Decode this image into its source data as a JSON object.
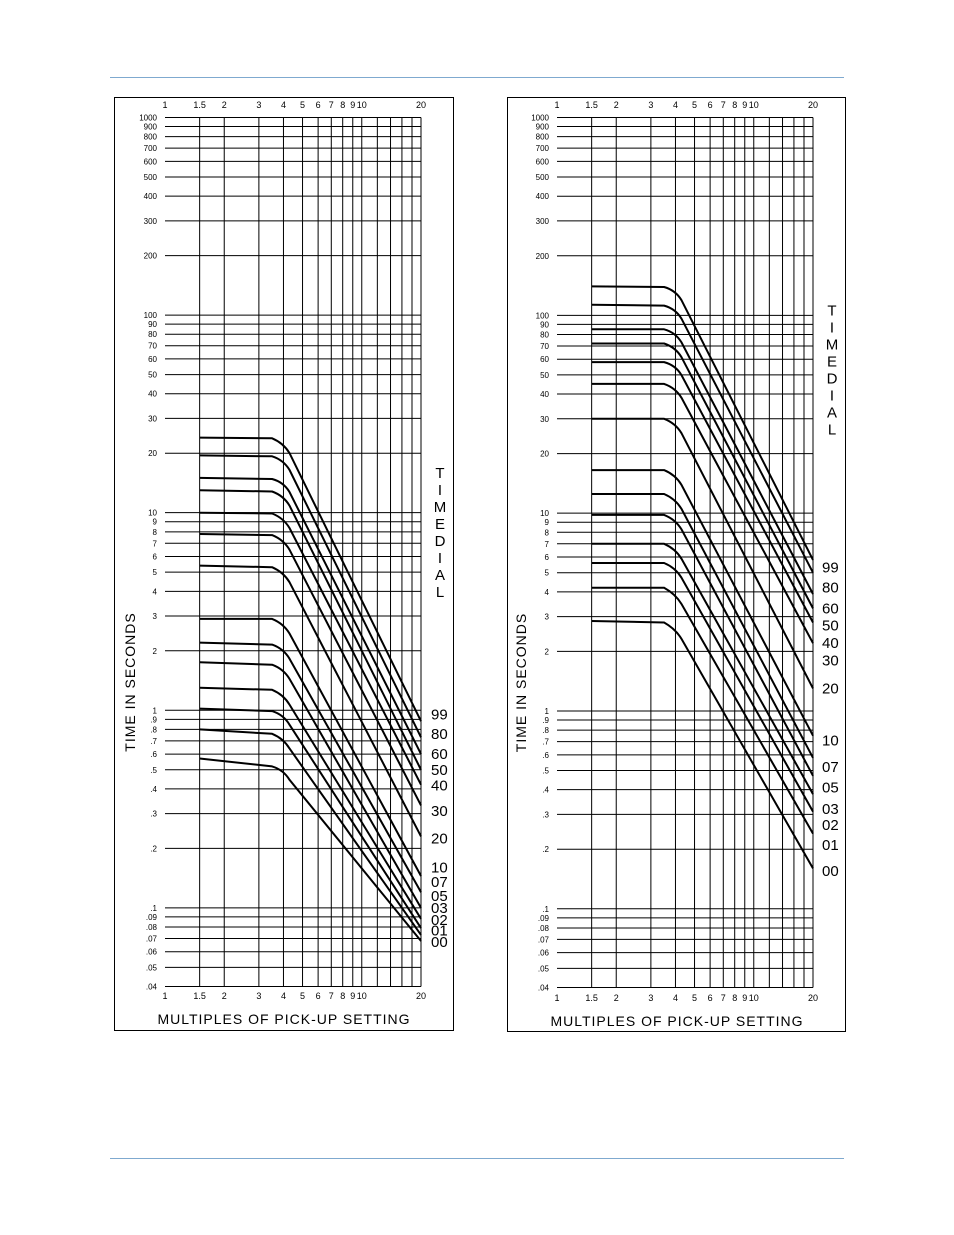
{
  "colors": {
    "rule": "#7fa9cf",
    "ink": "#000000",
    "paper": "#ffffff"
  },
  "chart_data": [
    {
      "type": "line",
      "title": "",
      "xlabel": "MULTIPLES OF PICK-UP SETTING",
      "ylabel": "TIME IN SECONDS",
      "legend_title": "TIME DIAL",
      "xscale": "log",
      "yscale": "log",
      "xlim": [
        1,
        20
      ],
      "ylim": [
        0.04,
        1000
      ],
      "grid": true,
      "x_tick_labels": [
        {
          "v": 1,
          "t": "1"
        },
        {
          "v": 1.5,
          "t": "1.5"
        },
        {
          "v": 2,
          "t": "2"
        },
        {
          "v": 3,
          "t": "3"
        },
        {
          "v": 4,
          "t": "4"
        },
        {
          "v": 5,
          "t": "5"
        },
        {
          "v": 6,
          "t": "6"
        },
        {
          "v": 7,
          "t": "7"
        },
        {
          "v": 8,
          "t": "8"
        },
        {
          "v": 9,
          "t": "9"
        },
        {
          "v": 10,
          "t": "10"
        },
        {
          "v": 20,
          "t": "20"
        }
      ],
      "y_tick_labels": [
        {
          "v": 1000,
          "t": "1000"
        },
        {
          "v": 900,
          "t": "900"
        },
        {
          "v": 800,
          "t": "800"
        },
        {
          "v": 700,
          "t": "700"
        },
        {
          "v": 600,
          "t": "600"
        },
        {
          "v": 500,
          "t": "500"
        },
        {
          "v": 400,
          "t": "400"
        },
        {
          "v": 300,
          "t": "300"
        },
        {
          "v": 200,
          "t": "200"
        },
        {
          "v": 100,
          "t": "100"
        },
        {
          "v": 90,
          "t": "90"
        },
        {
          "v": 80,
          "t": "80"
        },
        {
          "v": 70,
          "t": "70"
        },
        {
          "v": 60,
          "t": "60"
        },
        {
          "v": 50,
          "t": "50"
        },
        {
          "v": 40,
          "t": "40"
        },
        {
          "v": 30,
          "t": "30"
        },
        {
          "v": 20,
          "t": "20"
        },
        {
          "v": 10,
          "t": "10"
        },
        {
          "v": 9,
          "t": "9"
        },
        {
          "v": 8,
          "t": "8"
        },
        {
          "v": 7,
          "t": "7"
        },
        {
          "v": 6,
          "t": "6"
        },
        {
          "v": 5,
          "t": "5"
        },
        {
          "v": 4,
          "t": "4"
        },
        {
          "v": 3,
          "t": "3"
        },
        {
          "v": 2,
          "t": "2"
        },
        {
          "v": 1,
          "t": "1"
        },
        {
          "v": 0.9,
          "t": ".9"
        },
        {
          "v": 0.8,
          "t": ".8"
        },
        {
          "v": 0.7,
          "t": ".7"
        },
        {
          "v": 0.6,
          "t": ".6"
        },
        {
          "v": 0.5,
          "t": ".5"
        },
        {
          "v": 0.4,
          "t": ".4"
        },
        {
          "v": 0.3,
          "t": ".3"
        },
        {
          "v": 0.2,
          "t": ".2"
        },
        {
          "v": 0.1,
          "t": ".1"
        },
        {
          "v": 0.09,
          "t": ".09"
        },
        {
          "v": 0.08,
          "t": ".08"
        },
        {
          "v": 0.07,
          "t": ".07"
        },
        {
          "v": 0.06,
          "t": ".06"
        },
        {
          "v": 0.05,
          "t": ".05"
        },
        {
          "v": 0.04,
          "t": ".04"
        }
      ],
      "series": [
        {
          "name": "99",
          "x": [
            1.5,
            3.5,
            4,
            20
          ],
          "y": [
            24,
            23.8,
            22.5,
            0.88
          ]
        },
        {
          "name": "80",
          "x": [
            1.5,
            3.5,
            4,
            20
          ],
          "y": [
            19.5,
            19.3,
            18.5,
            0.73
          ]
        },
        {
          "name": "60",
          "x": [
            1.5,
            3.5,
            4,
            20
          ],
          "y": [
            15,
            14.8,
            14.3,
            0.6
          ]
        },
        {
          "name": "50",
          "x": [
            1.5,
            3.5,
            4,
            20
          ],
          "y": [
            13,
            12.8,
            12.2,
            0.5
          ]
        },
        {
          "name": "40",
          "x": [
            1.5,
            3.5,
            4,
            20
          ],
          "y": [
            10,
            9.9,
            9.4,
            0.42
          ]
        },
        {
          "name": "30",
          "x": [
            1.5,
            3.5,
            4,
            20
          ],
          "y": [
            7.8,
            7.7,
            7.3,
            0.33
          ]
        },
        {
          "name": "20",
          "x": [
            1.5,
            3.5,
            4,
            20
          ],
          "y": [
            5.4,
            5.3,
            5.0,
            0.23
          ]
        },
        {
          "name": "10",
          "x": [
            1.5,
            3.5,
            4,
            20
          ],
          "y": [
            2.9,
            2.9,
            2.75,
            0.145
          ]
        },
        {
          "name": "07",
          "x": [
            1.5,
            3.5,
            4,
            20
          ],
          "y": [
            2.2,
            2.15,
            2.05,
            0.12
          ]
        },
        {
          "name": "05",
          "x": [
            1.5,
            3.5,
            4,
            20
          ],
          "y": [
            1.75,
            1.7,
            1.62,
            0.1
          ]
        },
        {
          "name": "03",
          "x": [
            1.5,
            3.5,
            4,
            20
          ],
          "y": [
            1.3,
            1.27,
            1.2,
            0.088
          ]
        },
        {
          "name": "02",
          "x": [
            1.5,
            3.5,
            4,
            20
          ],
          "y": [
            1.02,
            0.99,
            0.95,
            0.079
          ]
        },
        {
          "name": "01",
          "x": [
            1.5,
            3.5,
            4,
            20
          ],
          "y": [
            0.8,
            0.76,
            0.72,
            0.073
          ]
        },
        {
          "name": "00",
          "x": [
            1.5,
            3.5,
            4,
            20
          ],
          "y": [
            0.57,
            0.52,
            0.5,
            0.068
          ]
        }
      ],
      "dial_label_y": [
        {
          "name": "99",
          "y": 0.95
        },
        {
          "name": "80",
          "y": 0.76
        },
        {
          "name": "60",
          "y": 0.6
        },
        {
          "name": "50",
          "y": 0.5
        },
        {
          "name": "40",
          "y": 0.415
        },
        {
          "name": "30",
          "y": 0.31
        },
        {
          "name": "20",
          "y": 0.225
        },
        {
          "name": "10",
          "y": 0.16
        },
        {
          "name": "07",
          "y": 0.135
        },
        {
          "name": "05",
          "y": 0.115
        },
        {
          "name": "03",
          "y": 0.1
        },
        {
          "name": "02",
          "y": 0.087
        },
        {
          "name": "01",
          "y": 0.077
        },
        {
          "name": "00",
          "y": 0.067
        }
      ],
      "dial_title_y_top": 15
    },
    {
      "type": "line",
      "title": "",
      "xlabel": "MULTIPLES OF PICK-UP SETTING",
      "ylabel": "TIME IN SECONDS",
      "legend_title": "TIME DIAL",
      "xscale": "log",
      "yscale": "log",
      "xlim": [
        1,
        20
      ],
      "ylim": [
        0.04,
        1000
      ],
      "grid": true,
      "x_tick_labels": [
        {
          "v": 1,
          "t": "1"
        },
        {
          "v": 1.5,
          "t": "1.5"
        },
        {
          "v": 2,
          "t": "2"
        },
        {
          "v": 3,
          "t": "3"
        },
        {
          "v": 4,
          "t": "4"
        },
        {
          "v": 5,
          "t": "5"
        },
        {
          "v": 6,
          "t": "6"
        },
        {
          "v": 7,
          "t": "7"
        },
        {
          "v": 8,
          "t": "8"
        },
        {
          "v": 9,
          "t": "9"
        },
        {
          "v": 10,
          "t": "10"
        },
        {
          "v": 20,
          "t": "20"
        }
      ],
      "y_tick_labels": [
        {
          "v": 1000,
          "t": "1000"
        },
        {
          "v": 900,
          "t": "900"
        },
        {
          "v": 800,
          "t": "800"
        },
        {
          "v": 700,
          "t": "700"
        },
        {
          "v": 600,
          "t": "600"
        },
        {
          "v": 500,
          "t": "500"
        },
        {
          "v": 400,
          "t": "400"
        },
        {
          "v": 300,
          "t": "300"
        },
        {
          "v": 200,
          "t": "200"
        },
        {
          "v": 100,
          "t": "100"
        },
        {
          "v": 90,
          "t": "90"
        },
        {
          "v": 80,
          "t": "80"
        },
        {
          "v": 70,
          "t": "70"
        },
        {
          "v": 60,
          "t": "60"
        },
        {
          "v": 50,
          "t": "50"
        },
        {
          "v": 40,
          "t": "40"
        },
        {
          "v": 30,
          "t": "30"
        },
        {
          "v": 20,
          "t": "20"
        },
        {
          "v": 10,
          "t": "10"
        },
        {
          "v": 9,
          "t": "9"
        },
        {
          "v": 8,
          "t": "8"
        },
        {
          "v": 7,
          "t": "7"
        },
        {
          "v": 6,
          "t": "6"
        },
        {
          "v": 5,
          "t": "5"
        },
        {
          "v": 4,
          "t": "4"
        },
        {
          "v": 3,
          "t": "3"
        },
        {
          "v": 2,
          "t": "2"
        },
        {
          "v": 1,
          "t": "1"
        },
        {
          "v": 0.9,
          "t": ".9"
        },
        {
          "v": 0.8,
          "t": ".8"
        },
        {
          "v": 0.7,
          "t": ".7"
        },
        {
          "v": 0.6,
          "t": ".6"
        },
        {
          "v": 0.5,
          "t": ".5"
        },
        {
          "v": 0.4,
          "t": ".4"
        },
        {
          "v": 0.3,
          "t": ".3"
        },
        {
          "v": 0.2,
          "t": ".2"
        },
        {
          "v": 0.1,
          "t": ".1"
        },
        {
          "v": 0.09,
          "t": ".09"
        },
        {
          "v": 0.08,
          "t": ".08"
        },
        {
          "v": 0.07,
          "t": ".07"
        },
        {
          "v": 0.06,
          "t": ".06"
        },
        {
          "v": 0.05,
          "t": ".05"
        },
        {
          "v": 0.04,
          "t": ".04"
        }
      ],
      "series": [
        {
          "name": "99",
          "x": [
            1.5,
            3.5,
            4,
            20
          ],
          "y": [
            140,
            139,
            134,
            5.8
          ]
        },
        {
          "name": "80",
          "x": [
            1.5,
            3.5,
            4,
            20
          ],
          "y": [
            113,
            112,
            108,
            5.0
          ]
        },
        {
          "name": "60",
          "x": [
            1.5,
            3.5,
            4,
            20
          ],
          "y": [
            85,
            85,
            82,
            3.9
          ]
        },
        {
          "name": "50",
          "x": [
            1.5,
            3.5,
            4,
            20
          ],
          "y": [
            72,
            72,
            69,
            3.3
          ]
        },
        {
          "name": "40",
          "x": [
            1.5,
            3.5,
            4,
            20
          ],
          "y": [
            58,
            58,
            56,
            2.8
          ]
        },
        {
          "name": "30",
          "x": [
            1.5,
            3.5,
            4,
            20
          ],
          "y": [
            45,
            45,
            43,
            2.2
          ]
        },
        {
          "name": "20",
          "x": [
            1.5,
            3.5,
            4,
            20
          ],
          "y": [
            30,
            30,
            28.5,
            1.3
          ]
        },
        {
          "name": "10",
          "x": [
            1.5,
            3.5,
            4,
            20
          ],
          "y": [
            16.5,
            16.5,
            15.6,
            0.75
          ]
        },
        {
          "name": "07",
          "x": [
            1.5,
            3.5,
            4,
            20
          ],
          "y": [
            12.5,
            12.5,
            11.8,
            0.58
          ]
        },
        {
          "name": "05",
          "x": [
            1.5,
            3.5,
            4,
            20
          ],
          "y": [
            9.8,
            9.8,
            9.3,
            0.47
          ]
        },
        {
          "name": "03",
          "x": [
            1.5,
            3.5,
            4,
            20
          ],
          "y": [
            7.0,
            7.0,
            6.6,
            0.38
          ]
        },
        {
          "name": "02",
          "x": [
            1.5,
            3.5,
            4,
            20
          ],
          "y": [
            5.6,
            5.6,
            5.3,
            0.31
          ]
        },
        {
          "name": "01",
          "x": [
            1.5,
            3.5,
            4,
            20
          ],
          "y": [
            4.2,
            4.2,
            3.9,
            0.24
          ]
        },
        {
          "name": "00",
          "x": [
            1.5,
            3.5,
            4,
            20
          ],
          "y": [
            2.85,
            2.8,
            2.6,
            0.16
          ]
        }
      ],
      "dial_label_y": [
        {
          "name": "99",
          "y": 5.3
        },
        {
          "name": "80",
          "y": 4.2
        },
        {
          "name": "60",
          "y": 3.3
        },
        {
          "name": "50",
          "y": 2.7
        },
        {
          "name": "40",
          "y": 2.2
        },
        {
          "name": "30",
          "y": 1.8
        },
        {
          "name": "20",
          "y": 1.3
        },
        {
          "name": "10",
          "y": 0.71
        },
        {
          "name": "07",
          "y": 0.52
        },
        {
          "name": "05",
          "y": 0.41
        },
        {
          "name": "03",
          "y": 0.32
        },
        {
          "name": "02",
          "y": 0.265
        },
        {
          "name": "01",
          "y": 0.21
        },
        {
          "name": "00",
          "y": 0.155
        }
      ],
      "dial_title_y_top": 100
    }
  ]
}
